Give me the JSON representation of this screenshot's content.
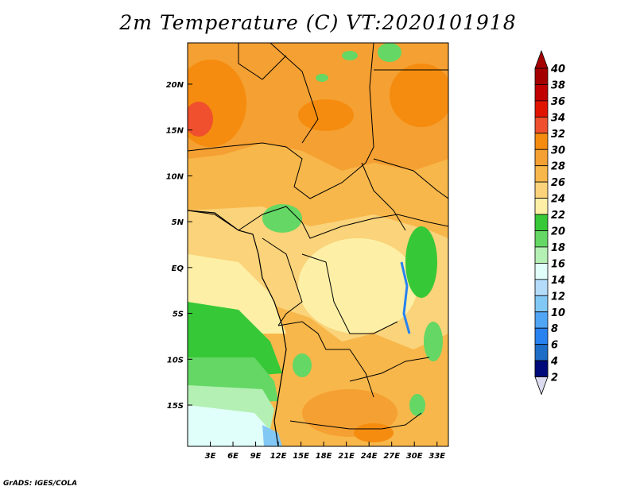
{
  "title": "2m Temperature (C) VT:2020101918",
  "credit": "GrADS: IGES/COLA",
  "map": {
    "lon_range": [
      0,
      34.5
    ],
    "lat_range": [
      -19.5,
      24.5
    ],
    "lon_ticks": [
      {
        "v": 3,
        "label": "3E"
      },
      {
        "v": 6,
        "label": "6E"
      },
      {
        "v": 9,
        "label": "9E"
      },
      {
        "v": 12,
        "label": "12E"
      },
      {
        "v": 15,
        "label": "15E"
      },
      {
        "v": 18,
        "label": "18E"
      },
      {
        "v": 21,
        "label": "21E"
      },
      {
        "v": 24,
        "label": "24E"
      },
      {
        "v": 27,
        "label": "27E"
      },
      {
        "v": 30,
        "label": "30E"
      },
      {
        "v": 33,
        "label": "33E"
      }
    ],
    "lat_ticks": [
      {
        "v": 20,
        "label": "20N"
      },
      {
        "v": 15,
        "label": "15N"
      },
      {
        "v": 10,
        "label": "10N"
      },
      {
        "v": 5,
        "label": "5N"
      },
      {
        "v": 0,
        "label": "EQ"
      },
      {
        "v": -5,
        "label": "5S"
      },
      {
        "v": -10,
        "label": "10S"
      },
      {
        "v": -15,
        "label": "15S"
      }
    ]
  },
  "colorbar": {
    "levels": [
      {
        "label": "40",
        "color": "#a50000"
      },
      {
        "label": "38",
        "color": "#c00000"
      },
      {
        "label": "36",
        "color": "#e11400"
      },
      {
        "label": "34",
        "color": "#f0502d"
      },
      {
        "label": "32",
        "color": "#f58c0f"
      },
      {
        "label": "30",
        "color": "#f5a032"
      },
      {
        "label": "28",
        "color": "#f8b74a"
      },
      {
        "label": "26",
        "color": "#fad37a"
      },
      {
        "label": "24",
        "color": "#fdf0a6"
      },
      {
        "label": "22",
        "color": "#37c837"
      },
      {
        "label": "20",
        "color": "#64d764"
      },
      {
        "label": "18",
        "color": "#b4f0b4"
      },
      {
        "label": "16",
        "color": "#e1fffa"
      },
      {
        "label": "14",
        "color": "#b4dcfa"
      },
      {
        "label": "12",
        "color": "#82c8f5"
      },
      {
        "label": "10",
        "color": "#50a5f5"
      },
      {
        "label": "8",
        "color": "#2882f0"
      },
      {
        "label": "6",
        "color": "#1e6ec8"
      },
      {
        "label": "4",
        "color": "#1450aa"
      },
      {
        "label": "2",
        "color": "#000a78"
      }
    ],
    "top_arrow_color": "#a50000",
    "bottom_arrow_color": "#dcdcf0"
  }
}
